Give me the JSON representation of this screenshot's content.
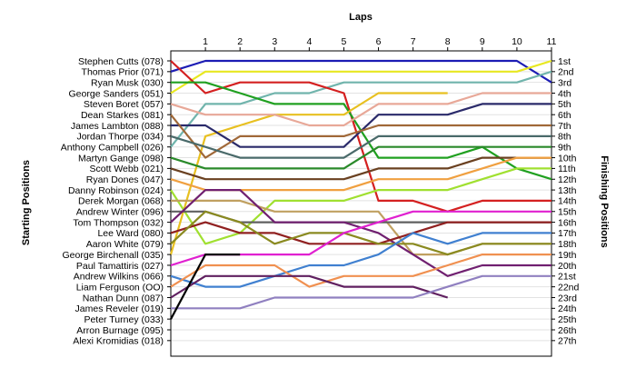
{
  "chart_data": {
    "type": "line",
    "title": "",
    "xlabel_top": "Laps",
    "ylabel_left": "Starting Positions",
    "ylabel_right": "Finishing Positions",
    "x_ticks": [
      1,
      2,
      3,
      4,
      5,
      6,
      7,
      8,
      9,
      10,
      11
    ],
    "start_labels": [
      "Stephen Cutts (078)",
      "Thomas Prior (071)",
      "Ryan Musk (030)",
      "George Sanders (051)",
      "Steven Boret (057)",
      "Dean Starkes (081)",
      "James Lambton (088)",
      "Jordan Thorpe (034)",
      "Anthony Campbell (026)",
      "Martyn Gange (098)",
      "Scott Webb (021)",
      "Ryan Dones (047)",
      "Danny Robinson (024)",
      "Derek Morgan (068)",
      "Andrew Winter (096)",
      "Tom Thompson (032)",
      "Lee Ward (080)",
      "Aaron White (079)",
      "George Birchenall (035)",
      "Paul Tamattiris (027)",
      "Andrew Wilkins (066)",
      "Liam Ferguson (OO)",
      "Nathan Dunn (087)",
      "James Reveler (019)",
      "Peter Turney (033)",
      "Arron Burnage (095)",
      "Alexi Kromidias (018)"
    ],
    "finish_labels": [
      "1st",
      "2nd",
      "3rd",
      "4th",
      "5th",
      "6th",
      "7th",
      "8th",
      "9th",
      "10th",
      "11th",
      "12th",
      "13th",
      "14th",
      "15th",
      "16th",
      "17th",
      "18th",
      "19th",
      "20th",
      "21st",
      "22nd",
      "23rd",
      "24th",
      "25th",
      "26th",
      "27th"
    ],
    "ylim": [
      1,
      27
    ],
    "xlim": [
      0,
      11
    ],
    "grid": "horizontal",
    "series": [
      {
        "color": "#1c1cb4",
        "start": 2,
        "values": [
          1,
          1,
          1,
          1,
          1,
          1,
          1,
          1,
          1,
          1,
          3
        ]
      },
      {
        "color": "#e8e820",
        "start": 4,
        "values": [
          2,
          2,
          2,
          2,
          2,
          2,
          2,
          2,
          2,
          2,
          1
        ]
      },
      {
        "color": "#70b4ac",
        "start": 9,
        "values": [
          5,
          5,
          4,
          4,
          3,
          3,
          3,
          3,
          3,
          3,
          2
        ]
      },
      {
        "color": "#d42020",
        "start": 1,
        "values": [
          4,
          3,
          3,
          3,
          4,
          14,
          14,
          15,
          14,
          14,
          14
        ]
      },
      {
        "color": "#20a020",
        "start": 3,
        "values": [
          3,
          4,
          5,
          5,
          5,
          10,
          10,
          10,
          9,
          11,
          12
        ]
      },
      {
        "color": "#e8c020",
        "start": 19,
        "values": [
          8,
          7,
          6,
          6,
          6,
          4,
          4,
          4
        ]
      },
      {
        "color": "#e8a898",
        "start": 5,
        "values": [
          6,
          6,
          6,
          7,
          7,
          5,
          5,
          5,
          4,
          4,
          4
        ]
      },
      {
        "color": "#2a2a6a",
        "start": 7,
        "values": [
          7,
          9,
          9,
          9,
          9,
          6,
          6,
          6,
          5,
          5,
          5
        ]
      },
      {
        "color": "#a06838",
        "start": 6,
        "values": [
          10,
          8,
          8,
          8,
          8,
          7,
          7,
          7,
          7,
          7,
          7
        ]
      },
      {
        "color": "#4a6a6a",
        "start": 8,
        "values": [
          9,
          10,
          10,
          10,
          10,
          8,
          8,
          8,
          8,
          8,
          8
        ]
      },
      {
        "color": "#2a8a2a",
        "start": 10,
        "values": [
          11,
          11,
          11,
          11,
          11,
          9,
          9,
          9,
          9,
          9,
          9
        ]
      },
      {
        "color": "#6a4020",
        "start": 11,
        "values": [
          12,
          12,
          12,
          12,
          12,
          11,
          11,
          11,
          10,
          10,
          10
        ]
      },
      {
        "color": "#f0a040",
        "start": 12,
        "values": [
          13,
          13,
          13,
          13,
          13,
          12,
          12,
          12,
          11,
          10,
          10
        ]
      },
      {
        "color": "#a0e030",
        "start": 13,
        "values": [
          18,
          17,
          14,
          14,
          14,
          13,
          13,
          13,
          12,
          11,
          11
        ]
      },
      {
        "color": "#c0a060",
        "start": 14,
        "values": [
          14,
          14,
          15,
          15,
          15,
          15,
          19,
          19,
          18,
          18,
          18
        ]
      },
      {
        "color": "#606060",
        "start": 15,
        "values": [
          15,
          16,
          16,
          16,
          16,
          16,
          16,
          16,
          16,
          16,
          16
        ]
      },
      {
        "color": "#702070",
        "start": 16,
        "values": [
          13,
          13,
          16,
          16,
          16,
          17,
          19,
          21,
          20,
          20,
          20
        ]
      },
      {
        "color": "#902020",
        "start": 17,
        "values": [
          16,
          17,
          17,
          18,
          18,
          18,
          17,
          16,
          16,
          16,
          16
        ]
      },
      {
        "color": "#8a8a20",
        "start": 18,
        "values": [
          15,
          16,
          18,
          17,
          17,
          18,
          18,
          19,
          18,
          18,
          18
        ]
      },
      {
        "color": "#e020d0",
        "start": 20,
        "values": [
          19,
          19,
          19,
          19,
          17,
          16,
          15,
          15,
          15,
          15,
          15
        ]
      },
      {
        "color": "#4080d0",
        "start": 21,
        "values": [
          22,
          22,
          21,
          20,
          20,
          19,
          17,
          18,
          17,
          17,
          17
        ]
      },
      {
        "color": "#f09050",
        "start": 22,
        "values": [
          20,
          20,
          20,
          22,
          21,
          21,
          21,
          20,
          19,
          19,
          19
        ]
      },
      {
        "color": "#602060",
        "start": 23,
        "values": [
          21,
          21,
          21,
          21,
          22,
          22,
          22,
          23
        ]
      },
      {
        "color": "#9080c0",
        "start": 24,
        "values": [
          24,
          24,
          23,
          23,
          23,
          23,
          23,
          22,
          21,
          21,
          21
        ]
      },
      {
        "color": "#000000",
        "start": 25,
        "values": [
          19,
          19
        ]
      }
    ]
  }
}
